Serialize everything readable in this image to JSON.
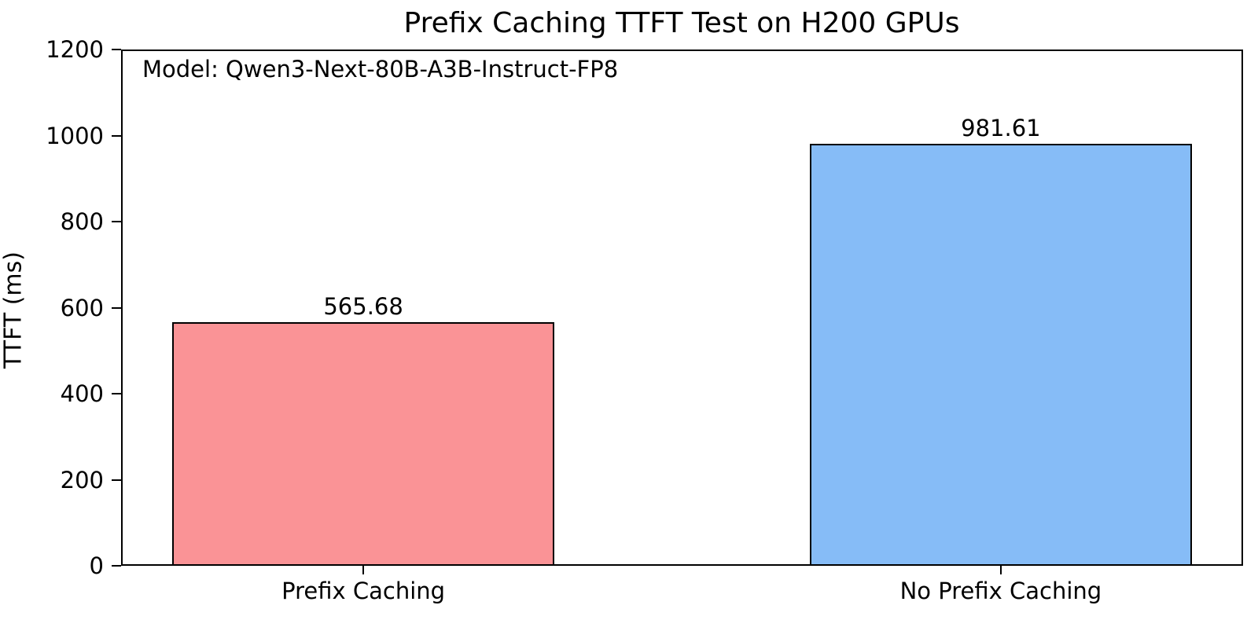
{
  "chart_data": {
    "type": "bar",
    "title": "Prefix Caching TTFT Test on H200 GPUs",
    "annotation": "Model: Qwen3-Next-80B-A3B-Instruct-FP8",
    "ylabel": "TTFT (ms)",
    "xlabel": "",
    "categories": [
      "Prefix Caching",
      "No Prefix Caching"
    ],
    "values": [
      565.68,
      981.61
    ],
    "value_labels": [
      "565.68",
      "981.61"
    ],
    "bar_colors": [
      "#fa9396",
      "#86bcf7"
    ],
    "bar_edge_color": "#000000",
    "ylim": [
      0,
      1200
    ],
    "yticks": [
      0,
      200,
      400,
      600,
      800,
      1000,
      1200
    ],
    "grid": false,
    "legend_position": "none",
    "background_color": "#ffffff",
    "text_color": "#000000"
  }
}
